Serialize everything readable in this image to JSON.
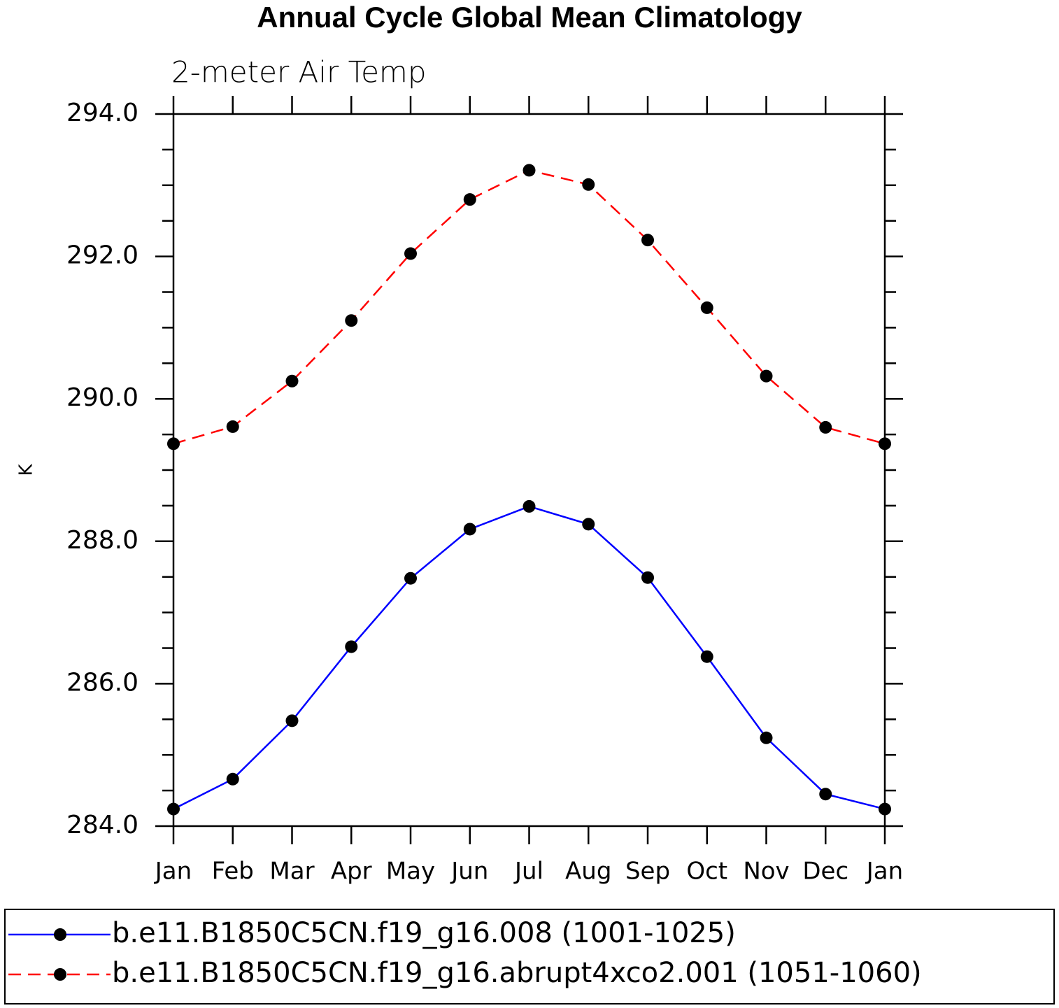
{
  "chart_data": {
    "type": "line",
    "title": "Annual Cycle Global Mean Climatology",
    "subtitle": "2-meter Air Temp",
    "y_label": "K",
    "categories": [
      "Jan",
      "Feb",
      "Mar",
      "Apr",
      "May",
      "Jun",
      "Jul",
      "Aug",
      "Sep",
      "Oct",
      "Nov",
      "Dec",
      "Jan"
    ],
    "series": [
      {
        "name": "b.e11.B1850C5CN.f19_g16.008 (1001-1025)",
        "color": "#0000ff",
        "line_style": "solid",
        "values": [
          284.24,
          284.66,
          285.48,
          286.52,
          287.48,
          288.17,
          288.49,
          288.24,
          287.49,
          286.38,
          285.24,
          284.45,
          284.24
        ]
      },
      {
        "name": "b.e11.B1850C5CN.f19_g16.abrupt4xco2.001 (1051-1060)",
        "color": "#ff0000",
        "line_style": "dashed",
        "values": [
          289.37,
          289.61,
          290.25,
          291.1,
          292.04,
          292.8,
          293.21,
          293.01,
          292.23,
          291.28,
          290.32,
          289.6,
          289.37
        ]
      }
    ],
    "ylim": [
      284,
      294
    ],
    "yticks": [
      {
        "value": 284,
        "label": "284.0"
      },
      {
        "value": 286,
        "label": "286.0"
      },
      {
        "value": 288,
        "label": "288.0"
      },
      {
        "value": 290,
        "label": "290.0"
      },
      {
        "value": 292,
        "label": "292.0"
      },
      {
        "value": 294,
        "label": "294.0"
      }
    ],
    "marker_color": "#000000",
    "grid": false,
    "legend": "bottom"
  }
}
